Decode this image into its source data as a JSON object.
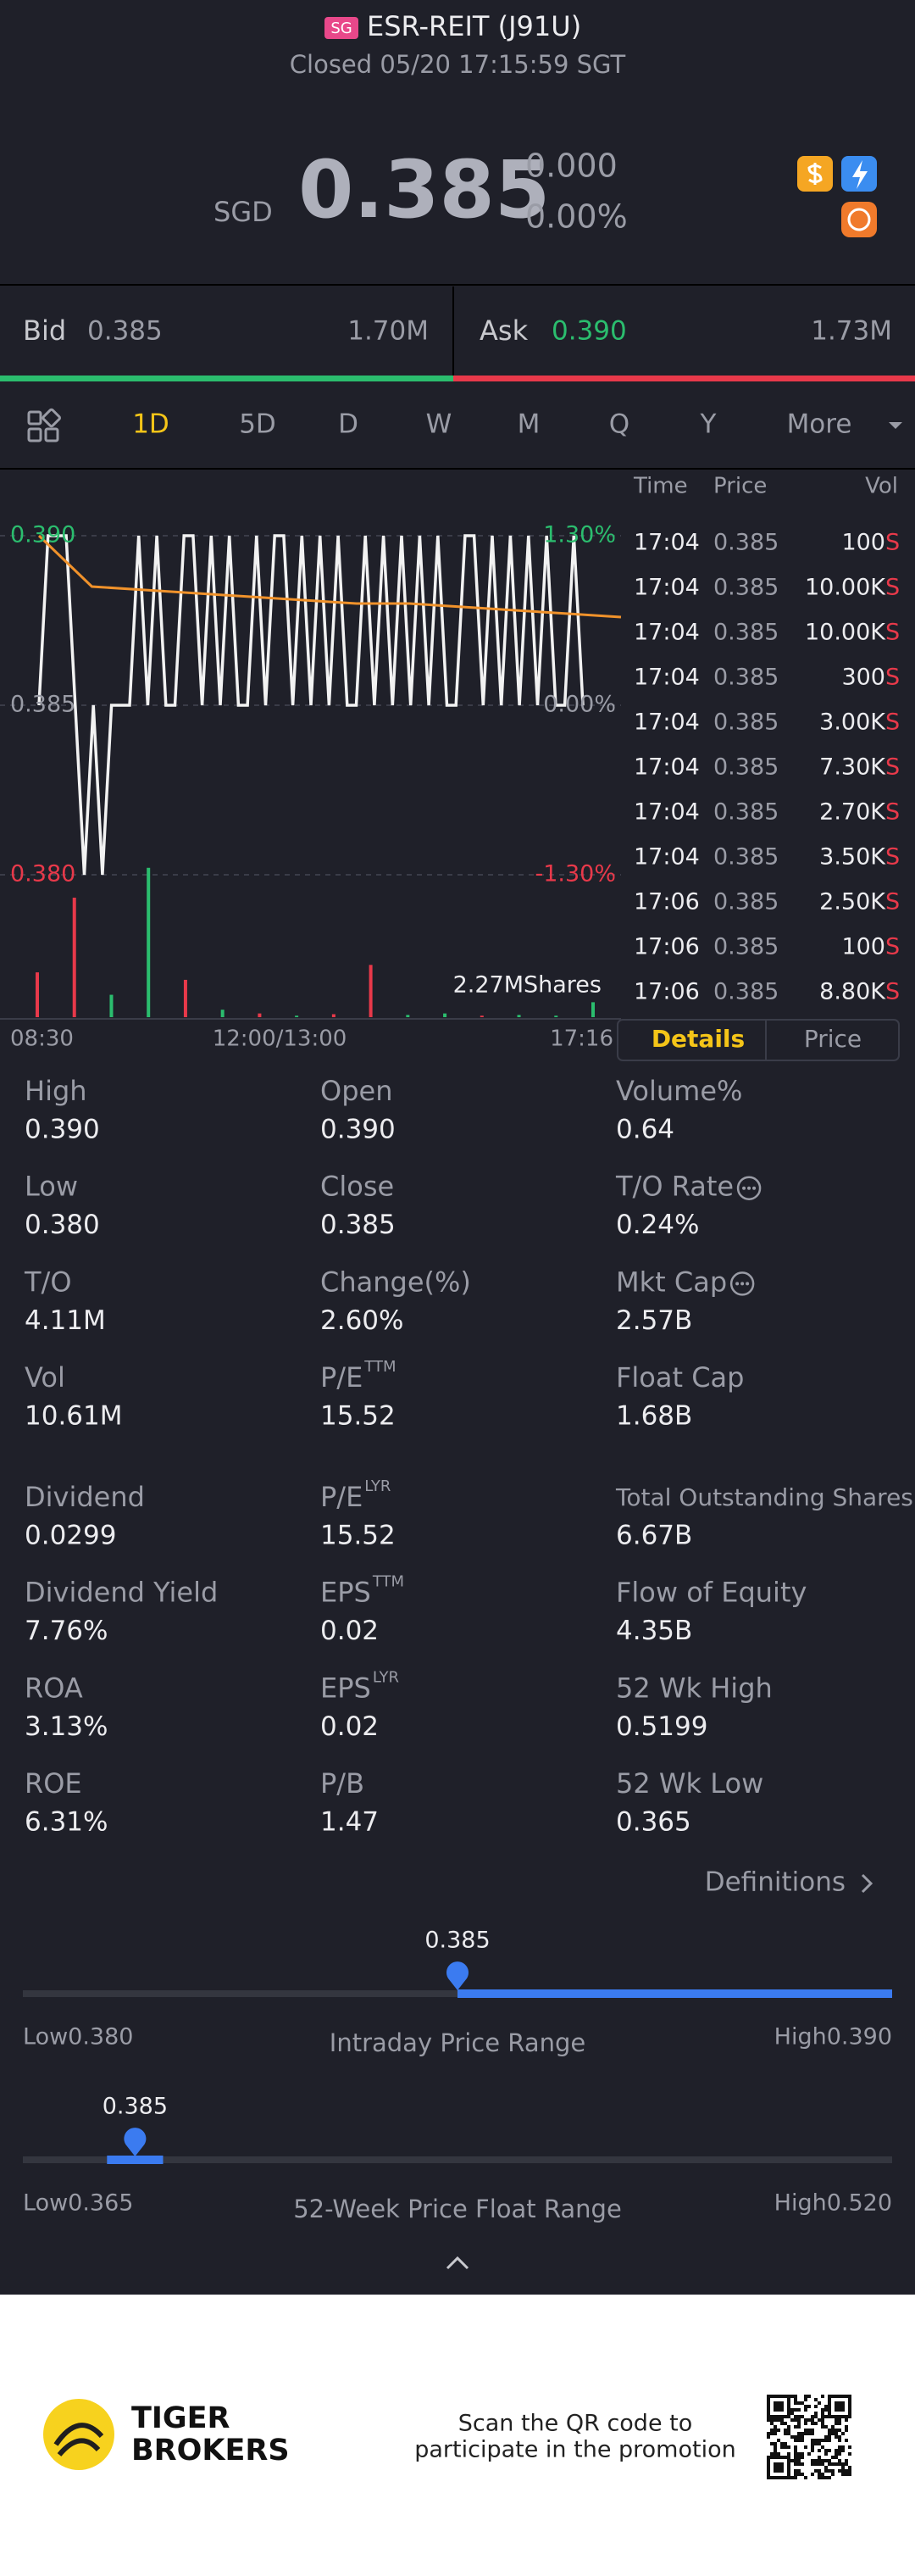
{
  "header": {
    "badge": "SG",
    "title": "ESR-REIT (J91U)",
    "status": "Closed 05/20 17:15:59 SGT"
  },
  "quote": {
    "currency": "SGD",
    "price": "0.385",
    "change": "0.000",
    "change_pct": "0.00%"
  },
  "bid_ask": {
    "bid_label": "Bid",
    "bid": "0.385",
    "bid_size": "1.70M",
    "ask_label": "Ask",
    "ask": "0.390",
    "ask_size": "1.73M"
  },
  "tabs": [
    "1D",
    "5D",
    "D",
    "W",
    "M",
    "Q",
    "Y",
    "More"
  ],
  "chart_data": {
    "type": "line",
    "price": [
      0.385,
      0.39,
      0.39,
      0.39,
      0.385,
      0.38,
      0.385,
      0.38,
      0.385,
      0.385,
      0.385,
      0.39,
      0.385,
      0.39,
      0.385,
      0.385,
      0.39,
      0.39,
      0.385,
      0.39,
      0.385,
      0.39,
      0.385,
      0.385,
      0.39,
      0.385,
      0.39,
      0.39,
      0.385,
      0.39,
      0.385,
      0.39,
      0.385,
      0.39,
      0.385,
      0.385,
      0.39,
      0.385,
      0.39,
      0.385,
      0.39,
      0.385,
      0.39,
      0.385,
      0.39,
      0.385,
      0.385,
      0.39,
      0.39,
      0.385,
      0.39,
      0.385,
      0.39,
      0.385,
      0.39,
      0.385,
      0.39,
      0.385,
      0.385,
      0.39,
      0.385
    ],
    "avg": [
      0.39,
      0.3885,
      0.3884,
      0.3883,
      0.3882,
      0.3881,
      0.388,
      0.388,
      0.3879,
      0.3878,
      0.3877,
      0.3876
    ],
    "ylim": [
      0.38,
      0.39
    ],
    "yticks": [
      {
        "value": 0.39,
        "label": "0.390"
      },
      {
        "value": 0.385,
        "label": "0.385"
      },
      {
        "value": 0.38,
        "label": "0.380"
      }
    ],
    "tick_colors": [
      "#2bbd6e",
      "#9a9ca6",
      "#e8394a"
    ],
    "pct_ticks": [
      "1.30%",
      "0.00%",
      "-1.30%"
    ],
    "xtick_labels": [
      "08:30",
      "12:00/13:00",
      "17:16"
    ],
    "volume": [
      0.6,
      1.6,
      0.3,
      2.0,
      0.5,
      0.1,
      0.05,
      0.02,
      0.04,
      0.7,
      0.03,
      0.05,
      0.02,
      0.03,
      0.02,
      0.2
    ],
    "volume_colors": [
      "#e8394a",
      "#e8394a",
      "#2bbd6e",
      "#2bbd6e",
      "#e8394a",
      "#2bbd6e",
      "#e8394a",
      "#2bbd6e",
      "#e8394a",
      "#e8394a",
      "#2bbd6e",
      "#2bbd6e",
      "#e8394a",
      "#2bbd6e",
      "#2bbd6e",
      "#2bbd6e"
    ],
    "volume_max": {
      "value": 2.27,
      "label": "2.27MShares"
    },
    "line_color": "#f2f2f2",
    "avg_color": "#f0922b"
  },
  "trades": {
    "headers": [
      "Time",
      "Price",
      "Vol"
    ],
    "rows": [
      [
        "17:04",
        "0.385",
        "100",
        "S"
      ],
      [
        "17:04",
        "0.385",
        "10.00K",
        "S"
      ],
      [
        "17:04",
        "0.385",
        "10.00K",
        "S"
      ],
      [
        "17:04",
        "0.385",
        "300",
        "S"
      ],
      [
        "17:04",
        "0.385",
        "3.00K",
        "S"
      ],
      [
        "17:04",
        "0.385",
        "7.30K",
        "S"
      ],
      [
        "17:04",
        "0.385",
        "2.70K",
        "S"
      ],
      [
        "17:04",
        "0.385",
        "3.50K",
        "S"
      ],
      [
        "17:06",
        "0.385",
        "2.50K",
        "S"
      ],
      [
        "17:06",
        "0.385",
        "100",
        "S"
      ],
      [
        "17:06",
        "0.385",
        "8.80K",
        "S"
      ]
    ]
  },
  "detail_tabs": [
    "Details",
    "Price"
  ],
  "stats": [
    {
      "label": "High",
      "value": "0.390"
    },
    {
      "label": "Open",
      "value": "0.390"
    },
    {
      "label": "Volume%",
      "value": "0.64"
    },
    {
      "label": "Low",
      "value": "0.380"
    },
    {
      "label": "Close",
      "value": "0.385"
    },
    {
      "label": "T/O Rate",
      "value": "0.24%",
      "info": true
    },
    {
      "label": "T/O",
      "value": "4.11M"
    },
    {
      "label": "Change(%)",
      "value": "2.60%"
    },
    {
      "label": "Mkt Cap",
      "value": "2.57B",
      "info": true
    },
    {
      "label": "Vol",
      "value": "10.61M"
    },
    {
      "label": "P/E",
      "sup": "TTM",
      "value": "15.52"
    },
    {
      "label": "Float Cap",
      "value": "1.68B"
    },
    {
      "label": "Dividend",
      "value": "0.0299"
    },
    {
      "label": "P/E",
      "sup": "LYR",
      "value": "15.52"
    },
    {
      "label": "Total Outstanding Shares",
      "value": "6.67B"
    },
    {
      "label": "Dividend Yield",
      "value": "7.76%"
    },
    {
      "label": "EPS",
      "sup": "TTM",
      "value": "0.02"
    },
    {
      "label": "Flow of Equity",
      "value": "4.35B"
    },
    {
      "label": "ROA",
      "value": "3.13%"
    },
    {
      "label": "EPS",
      "sup": "LYR",
      "value": "0.02"
    },
    {
      "label": "52 Wk High",
      "value": "0.5199"
    },
    {
      "label": "ROE",
      "value": "6.31%"
    },
    {
      "label": "P/B",
      "value": "1.47"
    },
    {
      "label": "52 Wk Low",
      "value": "0.365"
    }
  ],
  "definitions": "Definitions",
  "ranges": [
    {
      "title": "Intraday Price Range",
      "current": {
        "value": 0.385,
        "label": "0.385"
      },
      "low_label": "Low",
      "low": {
        "value": 0.38,
        "label": "0.380"
      },
      "high_label": "High",
      "high": {
        "value": 0.39,
        "label": "0.390"
      }
    },
    {
      "title": "52-Week Price Float Range",
      "current": {
        "value": 0.385,
        "label": "0.385"
      },
      "low_label": "Low",
      "low": {
        "value": 0.365,
        "label": "0.365"
      },
      "high_label": "High",
      "high": {
        "value": 0.52,
        "label": "0.520"
      }
    }
  ],
  "footer": {
    "brand": [
      "TIGER",
      "BROKERS"
    ],
    "promo": [
      "Scan the QR code to",
      "participate in the promotion"
    ]
  }
}
